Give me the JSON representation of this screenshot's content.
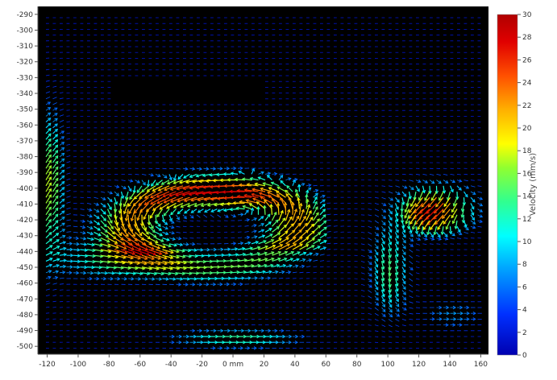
{
  "chart_data": {
    "type": "vector-field",
    "xlabel": "",
    "ylabel": "",
    "x_ticks": [
      "-120",
      "-100",
      "-80",
      "-60",
      "-40",
      "-20",
      "0 mm",
      "20",
      "40",
      "60",
      "80",
      "100",
      "120",
      "140",
      "160"
    ],
    "x_tick_values": [
      -120,
      -100,
      -80,
      -60,
      -40,
      -20,
      0,
      20,
      40,
      60,
      80,
      100,
      120,
      140,
      160
    ],
    "xlim": [
      -126,
      165
    ],
    "y_ticks": [
      "-290",
      "-300",
      "-310",
      "-320",
      "-330",
      "-340",
      "-350",
      "-360",
      "-370",
      "-380",
      "-390",
      "-400",
      "-410",
      "-420",
      "-430",
      "-440",
      "-450",
      "-460",
      "-470",
      "-480",
      "-490",
      "-500"
    ],
    "y_tick_values": [
      -290,
      -300,
      -310,
      -320,
      -330,
      -340,
      -350,
      -360,
      -370,
      -380,
      -390,
      -400,
      -410,
      -420,
      -430,
      -440,
      -450,
      -460,
      -470,
      -480,
      -490,
      -500
    ],
    "ylim": [
      -285,
      -505
    ],
    "background": "#000000",
    "grid": false,
    "colorbar": {
      "label": "Velocity (mm/s)",
      "ticks": [
        "30",
        "28",
        "26",
        "24",
        "22",
        "20",
        "18",
        "16",
        "14",
        "12",
        "10",
        "8",
        "6",
        "4",
        "2",
        "0"
      ],
      "tick_values": [
        30,
        28,
        26,
        24,
        22,
        20,
        18,
        16,
        14,
        12,
        10,
        8,
        6,
        4,
        2,
        0
      ],
      "range": [
        0,
        30
      ],
      "colors": [
        "#0000b0",
        "#0030ff",
        "#00a0ff",
        "#00ffff",
        "#30ff90",
        "#90ff30",
        "#ffff00",
        "#ffb000",
        "#ff5000",
        "#e00000",
        "#b00000"
      ],
      "placement": "right"
    },
    "flow_features": [
      {
        "name": "left-jet",
        "x": -120,
        "y": -420,
        "speed": 18
      },
      {
        "name": "lower-left-eddy",
        "x": -60,
        "y": -440,
        "speed": 22
      },
      {
        "name": "center-eddy",
        "x": -20,
        "y": -410,
        "speed": 24
      },
      {
        "name": "right-jet",
        "x": 130,
        "y": -410,
        "speed": 29
      },
      {
        "name": "right-descent",
        "x": 100,
        "y": -460,
        "speed": 16
      }
    ]
  }
}
